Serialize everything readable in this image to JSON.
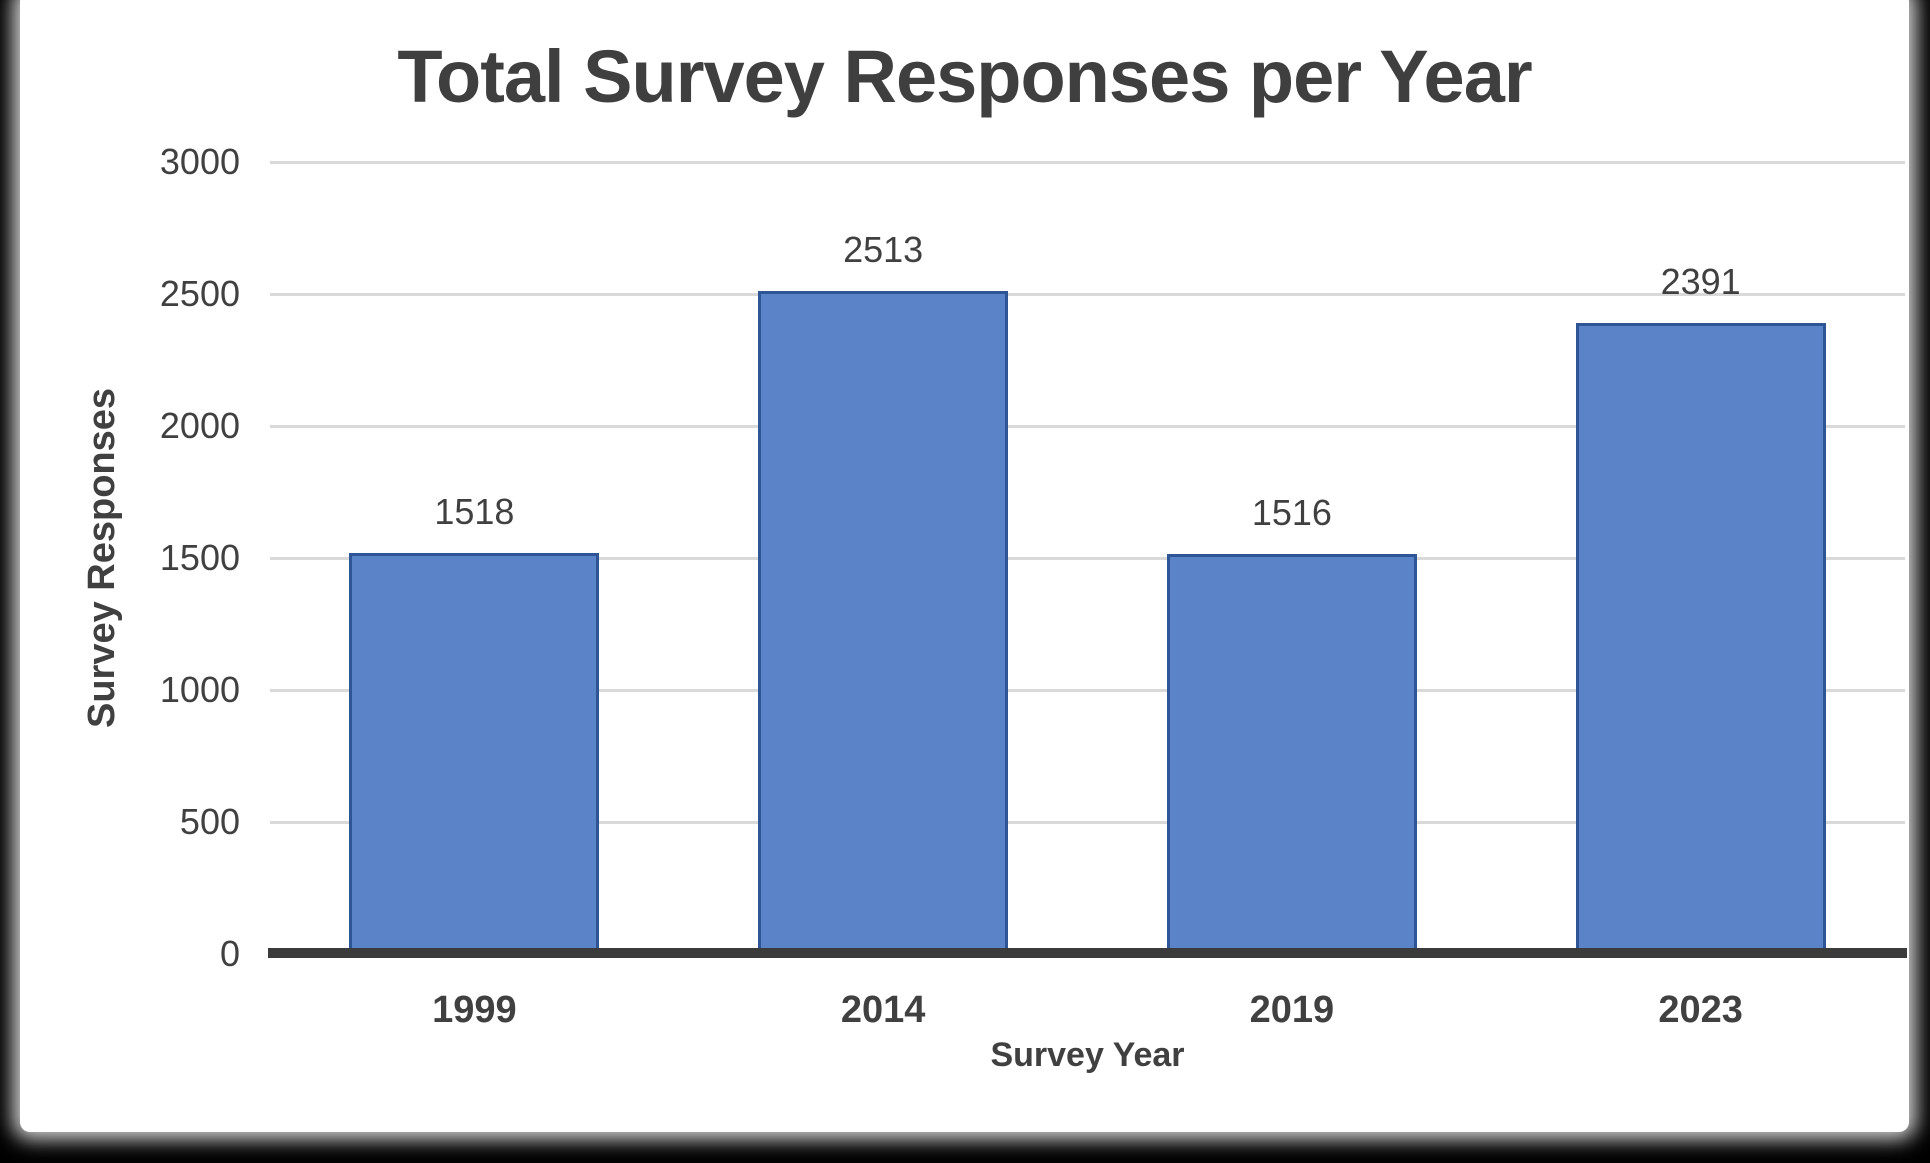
{
  "chart_data": {
    "type": "bar",
    "title": "Total Survey Responses per Year",
    "xlabel": "Survey Year",
    "ylabel": "Survey Responses",
    "categories": [
      "1999",
      "2014",
      "2019",
      "2023"
    ],
    "values": [
      1518,
      2513,
      1516,
      2391
    ],
    "yticks": [
      0,
      500,
      1000,
      1500,
      2000,
      2500,
      3000
    ],
    "ylim": [
      0,
      3000
    ],
    "grid": "horizontal",
    "legend_position": "none",
    "data_labels": true,
    "colors": {
      "bar_fill": "#5B84C8",
      "bar_border": "#2E5596",
      "gridline": "#D9D9D9",
      "axis_line": "#3B3B3B",
      "text": "#404040",
      "title_text": "#3F3F3F",
      "background": "#FFFFFF",
      "frame": "#000000"
    }
  }
}
